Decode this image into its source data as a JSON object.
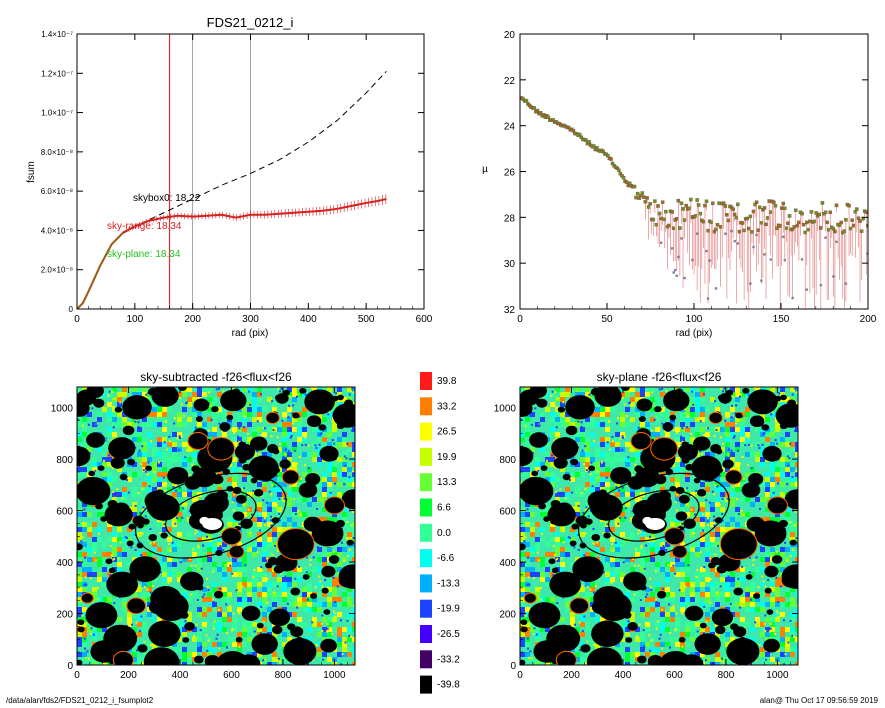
{
  "footer": {
    "path": "/data/alan/fds2/FDS21_0212_i_fsumplot2",
    "stamp": "alan@  Thu Oct 17 09:56:59 2019"
  },
  "colors": {
    "curve_total": "#000000",
    "curve_range": "#d62020",
    "curve_plane": "#22c022",
    "curve_early": "#8a6a10",
    "vline_red": "#e03030",
    "vline_gray": "#888888"
  },
  "chart_data": [
    {
      "type": "line",
      "title": "FDS21_0212_i",
      "xlabel": "rad (pix)",
      "ylabel": "fsum",
      "xlim": [
        0,
        600
      ],
      "ylim": [
        0,
        1.4e-07
      ],
      "xticks": [
        "0",
        "100",
        "200",
        "300",
        "400",
        "500",
        "600"
      ],
      "yticks": [
        "0",
        "2.0×10⁻⁸",
        "4.0×10⁻⁸",
        "6.0×10⁻⁸",
        "8.0×10⁻⁸",
        "1.0×10⁻⁷",
        "1.2×10⁻⁷",
        "1.4×10⁻⁷"
      ],
      "ytick_values": [
        0,
        2e-08,
        4e-08,
        6e-08,
        8e-08,
        1e-07,
        1.2e-07,
        1.4e-07
      ],
      "vlines": [
        160,
        200,
        300
      ],
      "annotations": [
        {
          "text": "skybox0: 18.22",
          "x": 100,
          "y": 5.7e-08,
          "color": "#000000"
        },
        {
          "text": "sky-range: 18.34",
          "x": 100,
          "y": 4.2e-08,
          "color": "#d62020"
        },
        {
          "text": "sky-plane: 18.34",
          "x": 100,
          "y": 2.8e-08,
          "color": "#22c022"
        }
      ],
      "series": [
        {
          "style": "dashed",
          "x": [
            0,
            10,
            20,
            40,
            60,
            80,
            100,
            150,
            200,
            250,
            300,
            350,
            400,
            450,
            500,
            535
          ],
          "y": [
            0,
            3e-09,
            9e-09,
            2.2e-08,
            3.3e-08,
            3.85e-08,
            4.2e-08,
            4.9e-08,
            5.6e-08,
            6.3e-08,
            6.9e-08,
            7.6e-08,
            8.5e-08,
            9.6e-08,
            1.1e-07,
            1.21e-07
          ]
        },
        {
          "style": "solid-with-errorbars",
          "x": [
            0,
            10,
            20,
            40,
            60,
            80,
            100,
            125,
            150,
            175,
            200,
            225,
            250,
            275,
            300,
            325,
            350,
            375,
            400,
            425,
            450,
            475,
            500,
            520,
            535
          ],
          "y": [
            0,
            3e-09,
            9e-09,
            2.2e-08,
            3.3e-08,
            3.9e-08,
            4.2e-08,
            4.5e-08,
            4.65e-08,
            4.75e-08,
            4.7e-08,
            4.75e-08,
            4.8e-08,
            4.65e-08,
            4.8e-08,
            4.8e-08,
            4.85e-08,
            4.9e-08,
            4.95e-08,
            5e-08,
            5.1e-08,
            5.25e-08,
            5.4e-08,
            5.5e-08,
            5.6e-08
          ]
        }
      ]
    },
    {
      "type": "scatter",
      "title": "",
      "xlabel": "rad (pix)",
      "ylabel": "µ",
      "xlim": [
        0,
        200
      ],
      "ylim": [
        32,
        20
      ],
      "xticks": [
        "0",
        "50",
        "100",
        "150",
        "200"
      ],
      "yticks": [
        "20",
        "22",
        "24",
        "26",
        "28",
        "30",
        "32"
      ],
      "trend": {
        "x": [
          0,
          10,
          20,
          30,
          40,
          50,
          55,
          60,
          65,
          70,
          75,
          80,
          90,
          100,
          110,
          120,
          130,
          140,
          150,
          160,
          170,
          180,
          190,
          200
        ],
        "y": [
          22.7,
          23.4,
          23.8,
          24.2,
          24.8,
          25.3,
          25.8,
          26.3,
          26.8,
          27.1,
          27.5,
          27.8,
          27.9,
          27.8,
          28.0,
          27.9,
          28.1,
          27.9,
          28.0,
          28.1,
          27.9,
          28.0,
          28.1,
          28.0
        ]
      }
    },
    {
      "type": "heatmap",
      "title": "sky-subtracted -f26<flux<f26",
      "xlim": [
        0,
        1080
      ],
      "ylim": [
        0,
        1080
      ],
      "xticks": [
        "0",
        "200",
        "400",
        "600",
        "800",
        "1000"
      ],
      "yticks": [
        "0",
        "200",
        "400",
        "600",
        "800",
        "1000"
      ],
      "ellipses": [
        {
          "cx": 520,
          "cy": 580,
          "rx": 300,
          "ry": 150,
          "angle": -15
        },
        {
          "cx": 520,
          "cy": 580,
          "rx": 180,
          "ry": 90,
          "angle": -15
        }
      ]
    },
    {
      "type": "heatmap",
      "title": "sky-plane -f26<flux<f26",
      "xlim": [
        0,
        1080
      ],
      "ylim": [
        0,
        1080
      ],
      "xticks": [
        "0",
        "200",
        "400",
        "600",
        "800",
        "1000"
      ],
      "yticks": [
        "0",
        "200",
        "400",
        "600",
        "800",
        "1000"
      ],
      "ellipses": [
        {
          "cx": 520,
          "cy": 580,
          "rx": 300,
          "ry": 150,
          "angle": -15
        },
        {
          "cx": 520,
          "cy": 580,
          "rx": 180,
          "ry": 90,
          "angle": -15
        }
      ]
    }
  ],
  "colorbar": {
    "labels": [
      "39.8",
      "33.2",
      "26.5",
      "19.9",
      "13.3",
      "6.6",
      "0.0",
      "-6.6",
      "-13.3",
      "-19.9",
      "-26.5",
      "-33.2",
      "-39.8"
    ],
    "colors": [
      "#ff1a1a",
      "#ff8000",
      "#ffff00",
      "#c8ff00",
      "#66ff33",
      "#00ff33",
      "#33ff99",
      "#00ffee",
      "#00b0ff",
      "#1a44ff",
      "#4400ff",
      "#440066",
      "#000000"
    ]
  }
}
